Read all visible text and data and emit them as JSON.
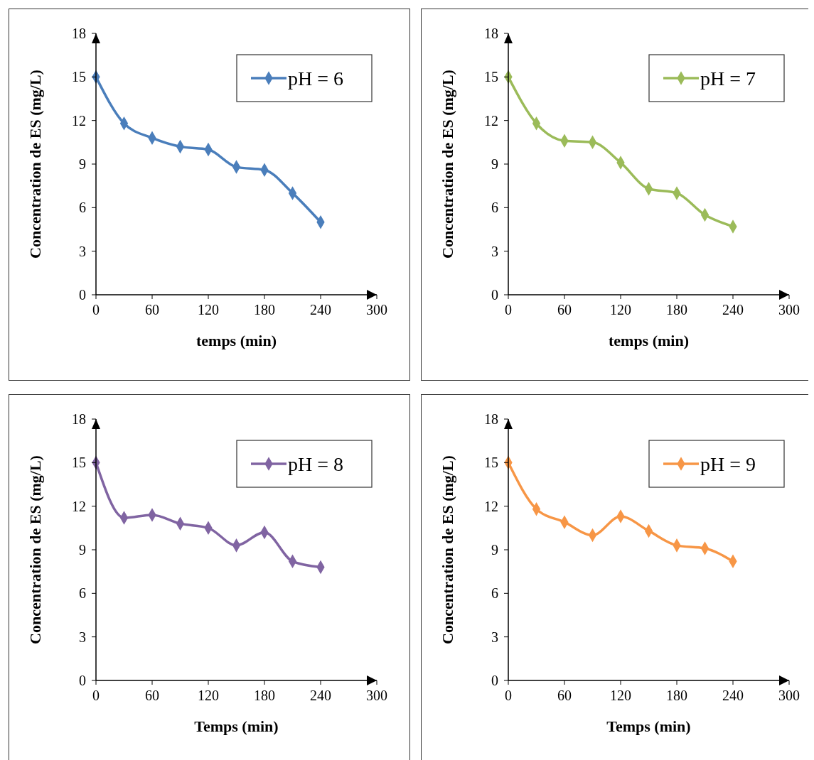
{
  "chart_data": [
    {
      "type": "line",
      "x": [
        0,
        30,
        60,
        90,
        120,
        150,
        180,
        210,
        240
      ],
      "xlabel": "temps (min)",
      "ylabel": "Concentration de ES (mg/L)",
      "xlim": [
        0,
        300
      ],
      "xticks": [
        0,
        60,
        120,
        180,
        240,
        300
      ],
      "ylim": [
        0,
        18
      ],
      "yticks": [
        0,
        3,
        6,
        9,
        12,
        15,
        18
      ],
      "marker": "diamond",
      "legend": "top right",
      "grid": false,
      "series": [
        {
          "name": "pH = 6",
          "color": "#4a7ebb",
          "values": [
            15,
            11.8,
            10.8,
            10.2,
            10.0,
            8.8,
            8.6,
            7.0,
            5.0
          ]
        }
      ]
    },
    {
      "type": "line",
      "x": [
        0,
        30,
        60,
        90,
        120,
        150,
        180,
        210,
        240
      ],
      "xlabel": "temps (min)",
      "ylabel": "Concentration de ES (mg/L)",
      "xlim": [
        0,
        300
      ],
      "xticks": [
        0,
        60,
        120,
        180,
        240,
        300
      ],
      "ylim": [
        0,
        18
      ],
      "yticks": [
        0,
        3,
        6,
        9,
        12,
        15,
        18
      ],
      "marker": "diamond",
      "legend": "top right",
      "grid": false,
      "series": [
        {
          "name": "pH = 7",
          "color": "#9bbb59",
          "values": [
            15,
            11.8,
            10.6,
            10.5,
            9.1,
            7.3,
            7.0,
            5.5,
            4.7
          ]
        }
      ]
    },
    {
      "type": "line",
      "x": [
        0,
        30,
        60,
        90,
        120,
        150,
        180,
        210,
        240
      ],
      "xlabel": "Temps (min)",
      "ylabel": "Concentration de ES (mg/L)",
      "xlim": [
        0,
        300
      ],
      "xticks": [
        0,
        60,
        120,
        180,
        240,
        300
      ],
      "ylim": [
        0,
        18
      ],
      "yticks": [
        0,
        3,
        6,
        9,
        12,
        15,
        18
      ],
      "marker": "diamond",
      "legend": "top right",
      "grid": false,
      "series": [
        {
          "name": "pH = 8",
          "color": "#8064a2",
          "values": [
            15,
            11.2,
            11.4,
            10.8,
            10.5,
            9.3,
            10.2,
            8.2,
            7.8
          ]
        }
      ]
    },
    {
      "type": "line",
      "x": [
        0,
        30,
        60,
        90,
        120,
        150,
        180,
        210,
        240
      ],
      "xlabel": "Temps (min)",
      "ylabel": "Concentration de ES (mg/L)",
      "xlim": [
        0,
        300
      ],
      "xticks": [
        0,
        60,
        120,
        180,
        240,
        300
      ],
      "ylim": [
        0,
        18
      ],
      "yticks": [
        0,
        3,
        6,
        9,
        12,
        15,
        18
      ],
      "marker": "diamond",
      "legend": "top right",
      "grid": false,
      "series": [
        {
          "name": "pH = 9",
          "color": "#f79646",
          "values": [
            15,
            11.8,
            10.9,
            10.0,
            11.3,
            10.3,
            9.3,
            9.1,
            8.2
          ]
        }
      ]
    }
  ]
}
